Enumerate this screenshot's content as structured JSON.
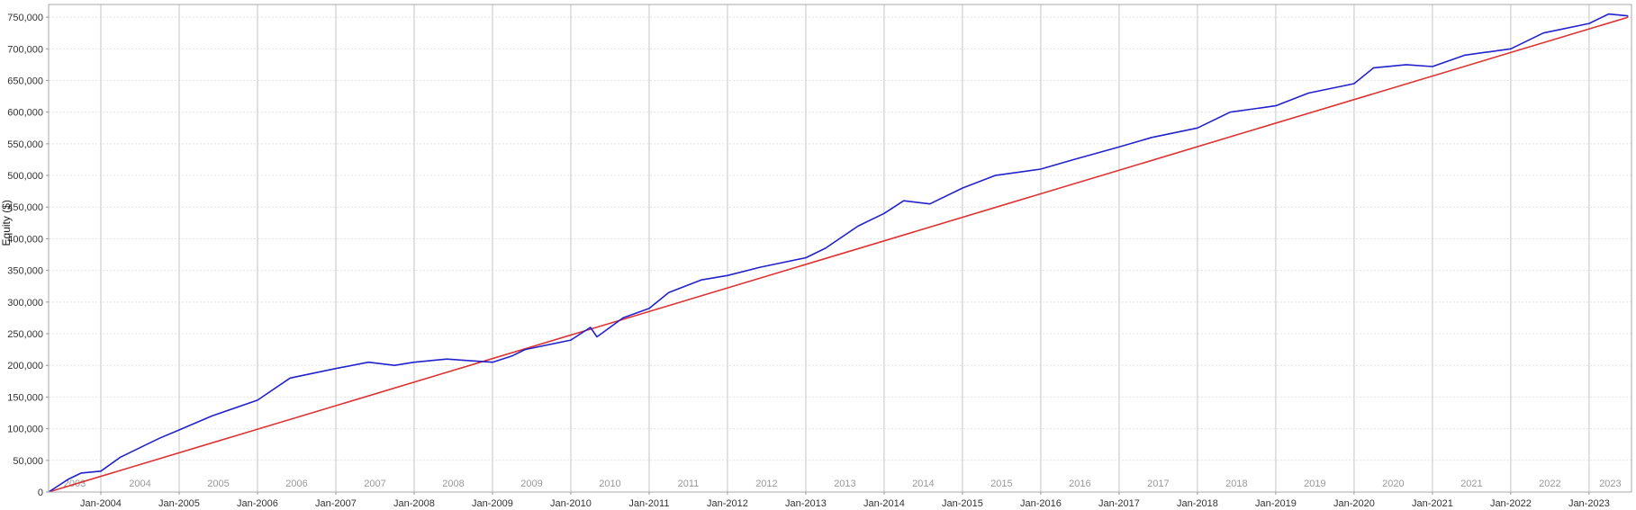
{
  "chart_data": {
    "type": "line",
    "title": "",
    "xlabel": "",
    "ylabel": "Equity ($)",
    "xlim": [
      "2003-05",
      "2023-07"
    ],
    "ylim": [
      0,
      770000
    ],
    "grid": true,
    "y_ticks": [
      0,
      50000,
      100000,
      150000,
      200000,
      250000,
      300000,
      350000,
      400000,
      450000,
      500000,
      550000,
      600000,
      650000,
      700000,
      750000
    ],
    "y_tick_labels": [
      "0",
      "50,000",
      "100,000",
      "150,000",
      "200,000",
      "250,000",
      "300,000",
      "350,000",
      "400,000",
      "450,000",
      "500,000",
      "550,000",
      "600,000",
      "650,000",
      "700,000",
      "750,000"
    ],
    "x_tick_labels": [
      "Jan-2004",
      "Jan-2005",
      "Jan-2006",
      "Jan-2007",
      "Jan-2008",
      "Jan-2009",
      "Jan-2010",
      "Jan-2011",
      "Jan-2012",
      "Jan-2013",
      "Jan-2014",
      "Jan-2015",
      "Jan-2016",
      "Jan-2017",
      "Jan-2018",
      "Jan-2019",
      "Jan-2020",
      "Jan-2021",
      "Jan-2022",
      "Jan-2023"
    ],
    "year_labels": [
      "2003",
      "2004",
      "2005",
      "2006",
      "2007",
      "2008",
      "2009",
      "2010",
      "2011",
      "2012",
      "2013",
      "2014",
      "2015",
      "2016",
      "2017",
      "2018",
      "2019",
      "2020",
      "2021",
      "2022",
      "2023"
    ],
    "series": [
      {
        "color": "#2222cc",
        "x": [
          "2003-05",
          "2003-08",
          "2003-10",
          "2004-01",
          "2004-04",
          "2004-08",
          "2004-10",
          "2005-01",
          "2005-06",
          "2006-01",
          "2006-06",
          "2007-01",
          "2007-06",
          "2007-10",
          "2008-01",
          "2008-06",
          "2009-01",
          "2009-04",
          "2009-06",
          "2010-01",
          "2010-04",
          "2010-05",
          "2010-09",
          "2011-01",
          "2011-04",
          "2011-09",
          "2012-01",
          "2012-06",
          "2013-01",
          "2013-04",
          "2013-09",
          "2014-01",
          "2014-04",
          "2014-08",
          "2015-01",
          "2015-06",
          "2016-01",
          "2016-06",
          "2017-01",
          "2017-06",
          "2018-01",
          "2018-06",
          "2019-01",
          "2019-06",
          "2020-01",
          "2020-04",
          "2020-09",
          "2021-01",
          "2021-06",
          "2022-01",
          "2022-06",
          "2023-01",
          "2023-04",
          "2023-07"
        ],
        "y": [
          0,
          20000,
          30000,
          33000,
          55000,
          75000,
          85000,
          98000,
          120000,
          145000,
          180000,
          195000,
          205000,
          200000,
          205000,
          210000,
          205000,
          215000,
          225000,
          240000,
          260000,
          245000,
          275000,
          290000,
          315000,
          335000,
          342000,
          355000,
          370000,
          385000,
          420000,
          440000,
          460000,
          455000,
          480000,
          500000,
          510000,
          525000,
          545000,
          560000,
          575000,
          600000,
          610000,
          630000,
          645000,
          670000,
          675000,
          672000,
          690000,
          700000,
          725000,
          740000,
          755000,
          752000
        ]
      },
      {
        "color": "#dd3333",
        "x": [
          "2003-05",
          "2023-07"
        ],
        "y": [
          0,
          750000
        ]
      }
    ]
  }
}
